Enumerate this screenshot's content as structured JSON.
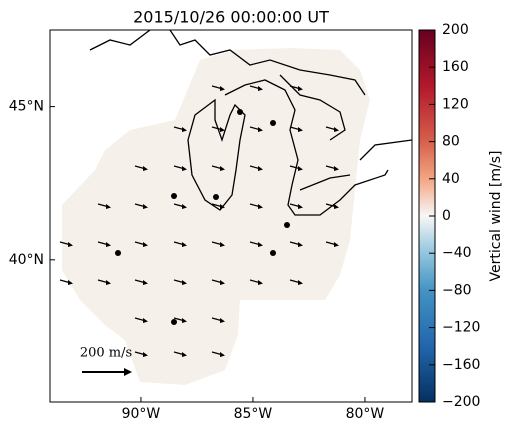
{
  "map": {
    "title": "2015/10/26 00:00:00 UT",
    "xlim": [
      -94.06,
      -77.9
    ],
    "ylim": [
      35.36,
      47.5
    ],
    "xticks": [
      {
        "value": -90,
        "label": "90°W"
      },
      {
        "value": -85,
        "label": "85°W"
      },
      {
        "value": -80,
        "label": "80°W"
      }
    ],
    "yticks": [
      {
        "value": 45,
        "label": "45°N"
      },
      {
        "value": 40,
        "label": "40°N"
      }
    ],
    "scale_label": "200 m/s",
    "colorbar": {
      "label": "Vertical wind [m/s]",
      "lim": [
        -200,
        200
      ],
      "ticks": [
        {
          "value": -200,
          "label": "−200"
        },
        {
          "value": -160,
          "label": "−160"
        },
        {
          "value": -120,
          "label": "−120"
        },
        {
          "value": -80,
          "label": "−80"
        },
        {
          "value": -40,
          "label": "−40"
        },
        0,
        40,
        80,
        120,
        160,
        200
      ]
    }
  }
}
